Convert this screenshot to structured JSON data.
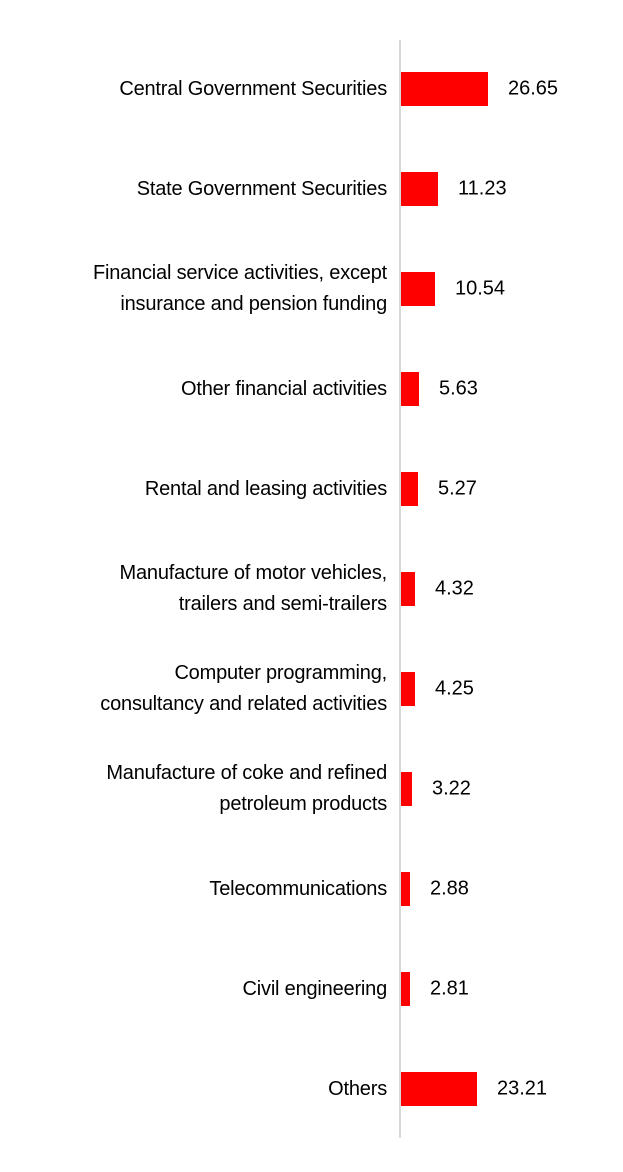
{
  "chart_data": {
    "type": "bar",
    "orientation": "horizontal",
    "title": "",
    "xlabel": "",
    "ylabel": "",
    "categories": [
      "Central Government Securities",
      "State Government Securities",
      "Financial service activities, except insurance and pension funding",
      "Other financial activities",
      "Rental and leasing activities",
      "Manufacture of motor vehicles, trailers and semi-trailers",
      "Computer programming, consultancy and related activities",
      "Manufacture of coke and refined petroleum products",
      "Telecommunications",
      "Civil engineering",
      "Others"
    ],
    "category_display_lines": [
      [
        "Central Government Securities"
      ],
      [
        "State Government Securities"
      ],
      [
        "Financial service activities, except",
        "insurance and pension funding"
      ],
      [
        "Other financial activities"
      ],
      [
        "Rental and leasing activities"
      ],
      [
        "Manufacture of motor vehicles,",
        "trailers and semi-trailers"
      ],
      [
        "Computer programming,",
        "consultancy and related activities"
      ],
      [
        "Manufacture of coke and refined",
        "petroleum products"
      ],
      [
        "Telecommunications"
      ],
      [
        "Civil engineering"
      ],
      [
        "Others"
      ]
    ],
    "values": [
      26.65,
      11.23,
      10.54,
      5.63,
      5.27,
      4.32,
      4.25,
      3.22,
      2.88,
      2.81,
      23.21
    ],
    "data_labels": [
      "26.65",
      "11.23",
      "10.54",
      "5.63",
      "5.27",
      "4.32",
      "4.25",
      "3.22",
      "2.88",
      "2.81",
      "23.21"
    ],
    "xlim": [
      0,
      30
    ],
    "grid": false,
    "legend": false,
    "value_label_position": "outside-end",
    "colors": {
      "bar": "#ff0000",
      "text": "#000000",
      "axis_line": "#d9d9d9",
      "background": "#ffffff"
    }
  }
}
